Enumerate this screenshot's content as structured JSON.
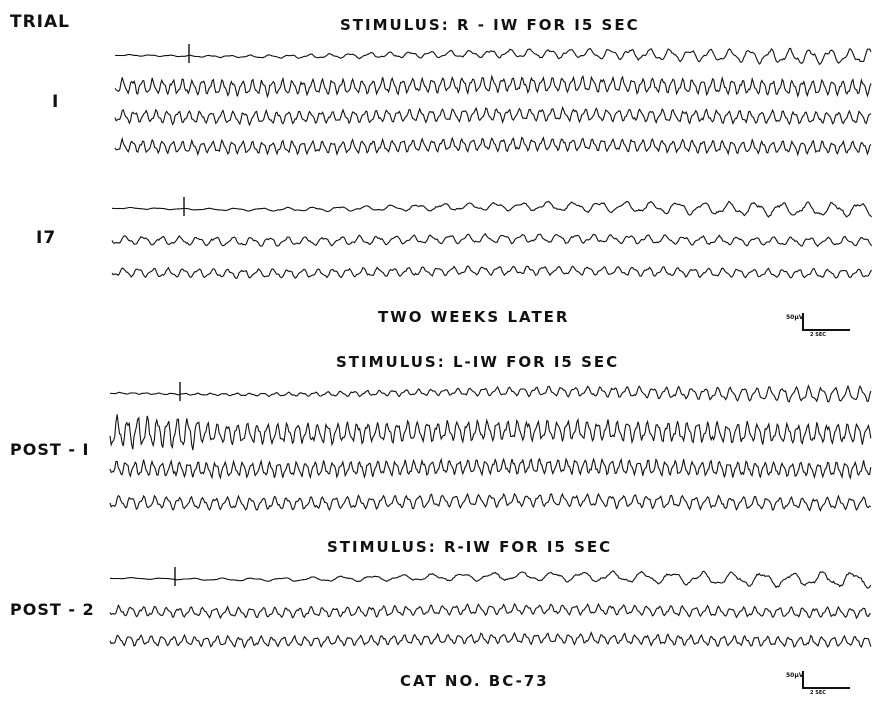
{
  "labels": {
    "trial_header": "TRIAL",
    "trial_1": "I",
    "trial_17": "I7",
    "post_1": "POST - I",
    "post_2": "POST - 2"
  },
  "titles": {
    "stim_1": "STIMULUS: R - IW FOR I5 SEC",
    "later": "TWO WEEKS LATER",
    "stim_2": "STIMULUS: L-IW FOR I5 SEC",
    "stim_3": "STIMULUS: R-IW FOR I5 SEC",
    "cat": "CAT NO. BC-73"
  },
  "scale_bar": {
    "voltage": "50μV",
    "time": "2 SEC"
  },
  "ink_color": "#111111"
}
